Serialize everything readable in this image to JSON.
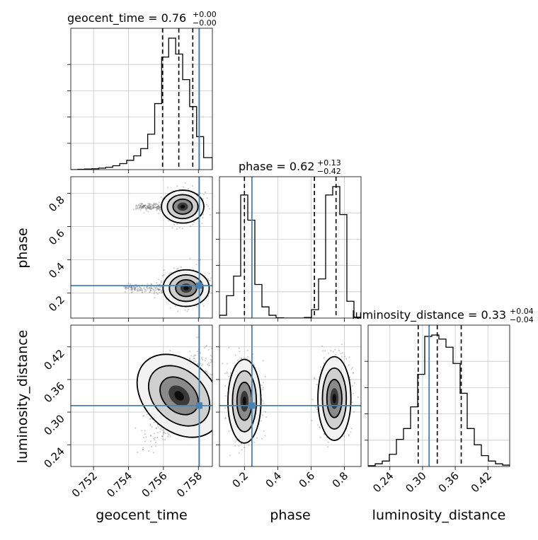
{
  "chart_data": {
    "type": "corner",
    "truth_color": "#4682b4",
    "parameters": [
      {
        "name": "geocent_time",
        "axis_label": "geocent_time",
        "range": [
          0.7507,
          0.7588
        ],
        "ticks": [
          "0.752",
          "0.754",
          "0.756",
          "0.758"
        ],
        "tick_values": [
          0.752,
          0.754,
          0.756,
          0.758
        ],
        "truth": 0.75805,
        "quantiles": [
          0.75595,
          0.75688,
          0.75768
        ],
        "title": {
          "prefix": "geocent_time = 0.76",
          "sup": "+0.00",
          "sub": "−0.00"
        }
      },
      {
        "name": "phase",
        "axis_label": "phase",
        "range": [
          0.05,
          0.9
        ],
        "ticks": [
          "0.2",
          "0.4",
          "0.6",
          "0.8"
        ],
        "tick_values": [
          0.2,
          0.4,
          0.6,
          0.8
        ],
        "truth": 0.245,
        "quantiles": [
          0.2,
          0.62,
          0.75
        ],
        "title": {
          "prefix": "phase = 0.62",
          "sup": "+0.13",
          "sub": "−0.42"
        }
      },
      {
        "name": "luminosity_distance",
        "axis_label": "luminosity_distance",
        "range": [
          0.2,
          0.46
        ],
        "ticks": [
          "0.24",
          "0.30",
          "0.36",
          "0.42"
        ],
        "tick_values": [
          0.24,
          0.3,
          0.36,
          0.42
        ],
        "truth": 0.312,
        "quantiles": [
          0.292,
          0.327,
          0.371
        ],
        "title": {
          "prefix": "luminosity_distance = 0.33",
          "sup": "+0.04",
          "sub": "−0.04"
        }
      }
    ],
    "histograms": [
      {
        "param": "geocent_time",
        "bin_edges": [
          0.7507,
          0.7511,
          0.7515,
          0.7519,
          0.7523,
          0.7527,
          0.7531,
          0.7535,
          0.7539,
          0.7543,
          0.7547,
          0.7551,
          0.7555,
          0.7559,
          0.7563,
          0.7567,
          0.7571,
          0.7575,
          0.7579,
          0.7583,
          0.7588
        ],
        "counts": [
          0,
          1,
          2,
          3,
          5,
          8,
          13,
          20,
          31,
          46,
          70,
          118,
          220,
          375,
          438,
          385,
          300,
          210,
          110,
          40
        ]
      },
      {
        "param": "phase",
        "bin_edges": [
          0.05,
          0.0925,
          0.135,
          0.1775,
          0.22,
          0.2625,
          0.305,
          0.3475,
          0.39,
          0.4325,
          0.475,
          0.5175,
          0.56,
          0.6025,
          0.645,
          0.6875,
          0.73,
          0.7725,
          0.815,
          0.8575,
          0.9
        ],
        "counts": [
          10,
          80,
          150,
          440,
          350,
          120,
          40,
          10,
          1,
          0,
          0,
          0,
          2,
          30,
          140,
          440,
          470,
          370,
          60,
          3
        ]
      },
      {
        "param": "luminosity_distance",
        "bin_edges": [
          0.2,
          0.213,
          0.226,
          0.239,
          0.252,
          0.265,
          0.278,
          0.291,
          0.304,
          0.317,
          0.33,
          0.343,
          0.356,
          0.369,
          0.382,
          0.395,
          0.408,
          0.421,
          0.434,
          0.447,
          0.46
        ],
        "counts": [
          3,
          10,
          20,
          45,
          100,
          140,
          220,
          340,
          480,
          485,
          470,
          440,
          380,
          270,
          140,
          80,
          40,
          20,
          10,
          5
        ]
      }
    ],
    "pair_panels": [
      {
        "x": "geocent_time",
        "y": "phase",
        "modes": [
          {
            "cx": 0.7571,
            "cy": 0.72,
            "sx": 0.00055,
            "sy": 0.045,
            "tail": -0.0025
          },
          {
            "cx": 0.7573,
            "cy": 0.23,
            "sx": 0.0006,
            "sy": 0.05,
            "tail": -0.0035
          }
        ]
      },
      {
        "x": "geocent_time",
        "y": "luminosity_distance",
        "modes": [
          {
            "cx": 0.7569,
            "cy": 0.33,
            "sx": 0.0009,
            "sy": 0.04,
            "rho": 0.75
          }
        ]
      },
      {
        "x": "phase",
        "y": "luminosity_distance",
        "modes": [
          {
            "cx": 0.2,
            "cy": 0.32,
            "sx": 0.045,
            "sy": 0.035
          },
          {
            "cx": 0.74,
            "cy": 0.325,
            "sx": 0.045,
            "sy": 0.035
          }
        ]
      }
    ],
    "grid": true
  }
}
